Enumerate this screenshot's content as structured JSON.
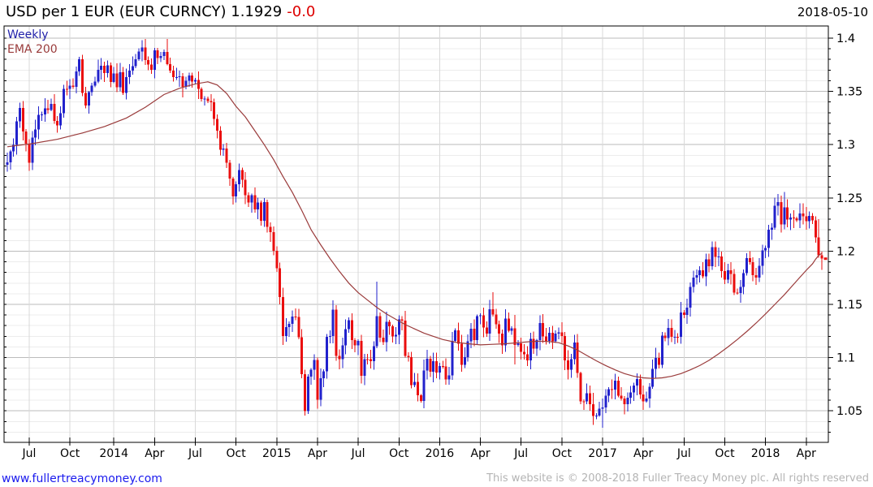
{
  "header": {
    "title": "USD per 1 EUR (EUR CURNCY) 1.1929",
    "change": "-0.0",
    "date": "2018-05-10"
  },
  "legend": {
    "timeframe": "Weekly",
    "overlay": "EMA 200"
  },
  "footer": {
    "site": "www.fullertreacymoney.com",
    "copyright": "This website is © 2008-2018 Fuller Treacy Money plc. All rights reserved"
  },
  "colors": {
    "up_candle": "#2121cc",
    "down_candle": "#ea0e0e",
    "ema_line": "#9a3b3b",
    "legend_timeframe": "#2222aa",
    "title_change": "#dd0000",
    "site_link": "#1a1aee",
    "copyright_text": "#b4b4b4",
    "grid_major": "#bbbbbb",
    "grid_minor": "#ececec",
    "grid_vertical": "#d9d9d9",
    "axis": "#000000"
  },
  "chart_data": {
    "type": "candlestick",
    "instrument": "USD per 1 EUR (EUR CURNCY)",
    "timeframe": "Weekly",
    "last_price": 1.1929,
    "change": "-0.0",
    "as_of_date": "2018-05-10",
    "legend_position": "top-left",
    "grid": true,
    "y_axis": {
      "side": "right",
      "ticks": [
        "1.4",
        "1.35",
        "1.3",
        "1.25",
        "1.2",
        "1.15",
        "1.1",
        "1.05"
      ],
      "minor_step": 0.01,
      "range": [
        1.02,
        1.41
      ]
    },
    "x_axis": {
      "labels": [
        {
          "label": "Jul",
          "week": 7
        },
        {
          "label": "Oct",
          "week": 20
        },
        {
          "label": "2014",
          "week": 34
        },
        {
          "label": "Apr",
          "week": 47
        },
        {
          "label": "Jul",
          "week": 60
        },
        {
          "label": "Oct",
          "week": 73
        },
        {
          "label": "2015",
          "week": 86
        },
        {
          "label": "Apr",
          "week": 99
        },
        {
          "label": "Jul",
          "week": 112
        },
        {
          "label": "Oct",
          "week": 125
        },
        {
          "label": "2016",
          "week": 138
        },
        {
          "label": "Apr",
          "week": 151
        },
        {
          "label": "Jul",
          "week": 164
        },
        {
          "label": "Oct",
          "week": 177
        },
        {
          "label": "2017",
          "week": 190
        },
        {
          "label": "Apr",
          "week": 203
        },
        {
          "label": "Jul",
          "week": 216
        },
        {
          "label": "Oct",
          "week": 229
        },
        {
          "label": "2018",
          "week": 242
        },
        {
          "label": "Apr",
          "week": 255
        }
      ]
    },
    "weeks": 261,
    "start_week": "2013-05-13",
    "end_week": "2018-05-07",
    "first_open": 1.281,
    "closes": [
      1.2834,
      1.2935,
      1.2998,
      1.3217,
      1.3343,
      1.3122,
      1.301,
      1.283,
      1.3068,
      1.3141,
      1.3279,
      1.3283,
      1.3339,
      1.3327,
      1.3383,
      1.3221,
      1.3179,
      1.3294,
      1.3524,
      1.3522,
      1.3554,
      1.3543,
      1.3686,
      1.3802,
      1.3487,
      1.3367,
      1.3494,
      1.3555,
      1.3591,
      1.3704,
      1.3741,
      1.3674,
      1.3744,
      1.3588,
      1.3667,
      1.354,
      1.3678,
      1.3487,
      1.3635,
      1.3694,
      1.3736,
      1.3802,
      1.3875,
      1.3911,
      1.3793,
      1.3753,
      1.3704,
      1.3885,
      1.3813,
      1.3834,
      1.387,
      1.3758,
      1.3694,
      1.3634,
      1.3635,
      1.3643,
      1.3541,
      1.3598,
      1.3648,
      1.3592,
      1.3607,
      1.3525,
      1.343,
      1.3434,
      1.3411,
      1.3398,
      1.324,
      1.3132,
      1.2952,
      1.2963,
      1.2829,
      1.2683,
      1.2515,
      1.2627,
      1.2761,
      1.267,
      1.2525,
      1.2456,
      1.2525,
      1.2392,
      1.2455,
      1.2286,
      1.2462,
      1.2227,
      1.218,
      1.2002,
      1.1841,
      1.1567,
      1.1204,
      1.1288,
      1.1316,
      1.1387,
      1.1381,
      1.1193,
      1.0843,
      1.0497,
      1.0821,
      1.0886,
      1.0976,
      1.0603,
      1.0808,
      1.0871,
      1.1197,
      1.1201,
      1.145,
      1.1015,
      1.0985,
      1.1115,
      1.1268,
      1.135,
      1.1166,
      1.1114,
      1.1158,
      1.083,
      1.0985,
      1.0984,
      1.0965,
      1.1108,
      1.1388,
      1.1187,
      1.1145,
      1.1336,
      1.1296,
      1.1198,
      1.1214,
      1.1358,
      1.1348,
      1.1017,
      1.1006,
      1.0742,
      1.0774,
      1.0645,
      1.0593,
      1.0879,
      1.099,
      1.0866,
      1.0966,
      1.0861,
      1.0921,
      1.0916,
      1.0795,
      1.0834,
      1.1157,
      1.1255,
      1.1131,
      1.0932,
      1.1004,
      1.1155,
      1.127,
      1.1165,
      1.1391,
      1.1399,
      1.1283,
      1.1224,
      1.1453,
      1.1403,
      1.1315,
      1.1225,
      1.1115,
      1.1366,
      1.1254,
      1.1277,
      1.1117,
      1.1136,
      1.1053,
      1.1032,
      1.0975,
      1.1177,
      1.1086,
      1.1163,
      1.1325,
      1.1198,
      1.1157,
      1.1234,
      1.1155,
      1.1227,
      1.1238,
      1.1201,
      1.0973,
      1.0885,
      1.0985,
      1.1141,
      1.0855,
      1.0589,
      1.0588,
      1.0666,
      1.0561,
      1.0452,
      1.0455,
      1.052,
      1.0532,
      1.0643,
      1.0702,
      1.0699,
      1.0783,
      1.0643,
      1.0614,
      1.0563,
      1.0623,
      1.0672,
      1.0739,
      1.0797,
      1.0653,
      1.0591,
      1.0614,
      1.0725,
      1.0895,
      1.0998,
      1.0932,
      1.1206,
      1.1183,
      1.128,
      1.1196,
      1.1197,
      1.1194,
      1.1425,
      1.1401,
      1.1469,
      1.1664,
      1.1752,
      1.1773,
      1.1822,
      1.1763,
      1.1924,
      1.1859,
      1.2036,
      1.1944,
      1.195,
      1.1814,
      1.1731,
      1.1822,
      1.1785,
      1.1609,
      1.1608,
      1.1665,
      1.1794,
      1.1933,
      1.1898,
      1.1775,
      1.175,
      1.1863,
      1.2005,
      1.203,
      1.2203,
      1.2221,
      1.2426,
      1.2462,
      1.225,
      1.2409,
      1.2295,
      1.2316,
      1.2307,
      1.229,
      1.2354,
      1.2328,
      1.2282,
      1.233,
      1.2288,
      1.213,
      1.196,
      1.1929
    ],
    "wick_overrides": {
      "51": [
        1.3993,
        1.3745
      ],
      "95": [
        1.0885,
        1.0457
      ],
      "99": [
        1.0999,
        1.0519
      ],
      "118": [
        1.1715,
        1.1087
      ],
      "133": [
        1.0981,
        1.0524
      ],
      "155": [
        1.1616,
        1.1387
      ],
      "162": [
        1.14,
        1.0935
      ],
      "187": [
        1.067,
        1.0367
      ],
      "190": [
        1.0616,
        1.0341
      ],
      "225": [
        1.2092,
        1.1823
      ],
      "246": [
        1.2537,
        1.2335
      ],
      "248": [
        1.2556,
        1.2206
      ],
      "259": [
        1.2302,
        1.1938
      ],
      "260": [
        1.1997,
        1.1823
      ]
    },
    "overlays": [
      {
        "name": "EMA 200",
        "color": "#9a3b3b",
        "points": [
          [
            0,
            1.298
          ],
          [
            8,
            1.301
          ],
          [
            16,
            1.305
          ],
          [
            24,
            1.311
          ],
          [
            31,
            1.317
          ],
          [
            38,
            1.325
          ],
          [
            44,
            1.335
          ],
          [
            50,
            1.347
          ],
          [
            55,
            1.353
          ],
          [
            60,
            1.357
          ],
          [
            64,
            1.359
          ],
          [
            67,
            1.356
          ],
          [
            70,
            1.348
          ],
          [
            73,
            1.336
          ],
          [
            76,
            1.326
          ],
          [
            79,
            1.313
          ],
          [
            82,
            1.3
          ],
          [
            85,
            1.286
          ],
          [
            88,
            1.27
          ],
          [
            91,
            1.255
          ],
          [
            94,
            1.238
          ],
          [
            97,
            1.22
          ],
          [
            100,
            1.206
          ],
          [
            103,
            1.193
          ],
          [
            106,
            1.181
          ],
          [
            109,
            1.17
          ],
          [
            112,
            1.161
          ],
          [
            115,
            1.154
          ],
          [
            118,
            1.147
          ],
          [
            121,
            1.141
          ],
          [
            124,
            1.136
          ],
          [
            127,
            1.131
          ],
          [
            130,
            1.127
          ],
          [
            133,
            1.123
          ],
          [
            136,
            1.12
          ],
          [
            139,
            1.117
          ],
          [
            143,
            1.1145
          ],
          [
            147,
            1.113
          ],
          [
            151,
            1.112
          ],
          [
            155,
            1.1125
          ],
          [
            159,
            1.113
          ],
          [
            163,
            1.114
          ],
          [
            167,
            1.115
          ],
          [
            170,
            1.1155
          ],
          [
            173,
            1.115
          ],
          [
            176,
            1.114
          ],
          [
            179,
            1.111
          ],
          [
            182,
            1.107
          ],
          [
            185,
            1.102
          ],
          [
            188,
            1.097
          ],
          [
            191,
            1.0925
          ],
          [
            194,
            1.0885
          ],
          [
            197,
            1.085
          ],
          [
            200,
            1.0825
          ],
          [
            203,
            1.081
          ],
          [
            206,
            1.0805
          ],
          [
            209,
            1.081
          ],
          [
            212,
            1.0825
          ],
          [
            215,
            1.085
          ],
          [
            218,
            1.0885
          ],
          [
            221,
            1.0925
          ],
          [
            224,
            1.0975
          ],
          [
            227,
            1.1035
          ],
          [
            230,
            1.11
          ],
          [
            233,
            1.117
          ],
          [
            236,
            1.1245
          ],
          [
            239,
            1.1325
          ],
          [
            242,
            1.141
          ],
          [
            245,
            1.15
          ],
          [
            248,
            1.159
          ],
          [
            251,
            1.169
          ],
          [
            253,
            1.1755
          ],
          [
            255,
            1.182
          ],
          [
            257,
            1.188
          ],
          [
            258,
            1.1925
          ],
          [
            259,
            1.196
          ],
          [
            260,
            1.198
          ]
        ]
      }
    ]
  }
}
